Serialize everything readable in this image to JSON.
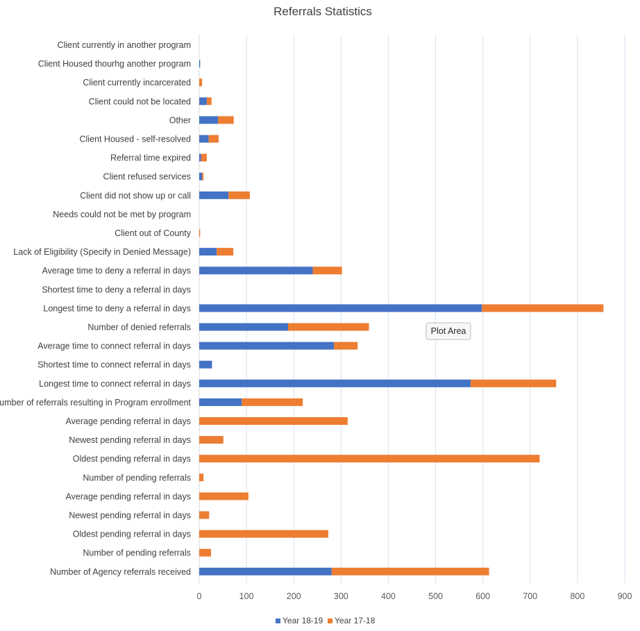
{
  "chart_data": {
    "type": "bar",
    "orientation": "horizontal",
    "stacked": true,
    "title": "Referrals Statistics",
    "categories": [
      "Client currently in another program",
      "Client Housed thourhg another program",
      "Client currently incarcerated",
      "Client could not be located",
      "Other",
      "Client Housed - self-resolved",
      "Referral time expired",
      "Client refused services",
      "Client did not show up or call",
      "Needs could not be met by program",
      "Client out of County",
      "Lack of Eligibility (Specify in Denied Message)",
      "Average time to deny a referral in days",
      "Shortest time to deny a referral in days",
      "Longest time to deny a referral in days",
      "Number of denied referrals",
      "Average time to connect referral in days",
      "Shortest time to connect referral in days",
      "Longest time to connect referral in days",
      "Number of referrals resulting in Program enrollment",
      "Average pending referral in days",
      "Newest pending referral in days",
      "Oldest pending referral in days",
      "Number of pending referrals",
      "Average pending referral in days",
      "Newest pending referral in days",
      "Oldest pending referral in days",
      "Number of pending referrals",
      "Number of Agency referrals received"
    ],
    "series": [
      {
        "name": "Year 18-19",
        "color": "#4472c4",
        "values": [
          0,
          2,
          0,
          16,
          40,
          20,
          4,
          6,
          62,
          0,
          0,
          37,
          240,
          0,
          598,
          188,
          285,
          27,
          574,
          90,
          0,
          0,
          0,
          0,
          0,
          0,
          0,
          0,
          280
        ]
      },
      {
        "name": "Year 17-18",
        "color": "#ed7d31",
        "values": [
          0,
          0,
          6,
          10,
          33,
          21,
          12,
          3,
          45,
          0,
          2,
          35,
          62,
          0,
          257,
          171,
          50,
          0,
          181,
          129,
          314,
          51,
          720,
          9,
          104,
          21,
          273,
          25,
          333
        ]
      }
    ],
    "xlim": [
      0,
      900
    ],
    "xticks": [
      "0",
      "100",
      "200",
      "300",
      "400",
      "500",
      "600",
      "700",
      "800",
      "900"
    ],
    "grid": true,
    "legend_position": "bottom",
    "annotation": "Plot Area"
  }
}
